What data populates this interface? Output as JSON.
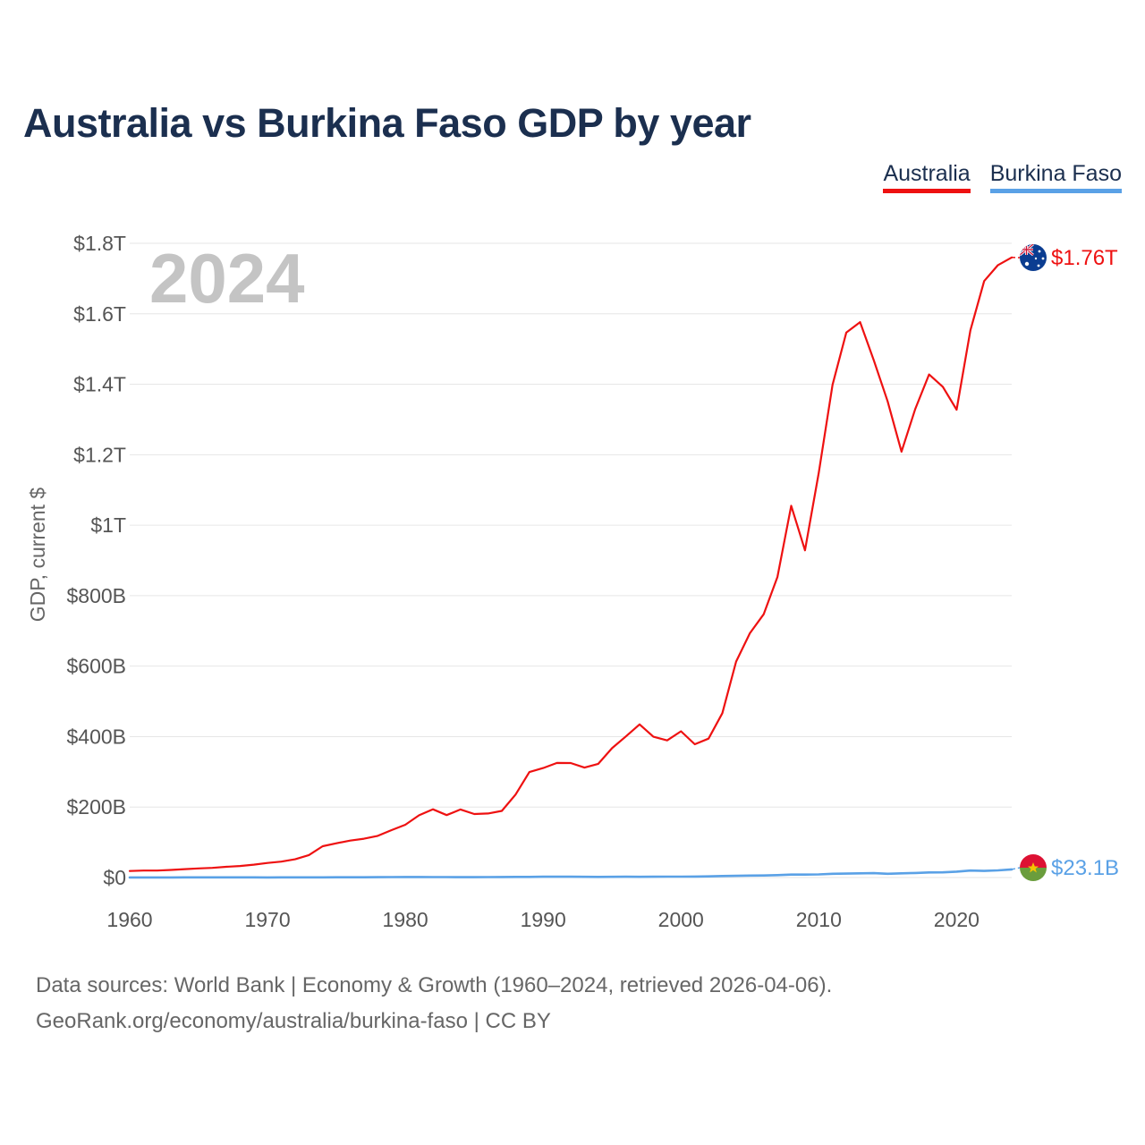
{
  "title": "Australia vs Burkina Faso GDP by year",
  "legend": {
    "items": [
      {
        "label": "Australia",
        "color": "#ee1111"
      },
      {
        "label": "Burkina Faso",
        "color": "#5aa1e6"
      }
    ]
  },
  "watermark_year": "2024",
  "footer": {
    "line1": "Data sources: World Bank | Economy & Growth (1960–2024, retrieved 2026-04-06).",
    "line2": "GeoRank.org/economy/australia/burkina-faso | CC BY"
  },
  "chart_data": {
    "type": "line",
    "title": "Australia vs Burkina Faso GDP by year",
    "xlabel": "",
    "ylabel": "GDP, current $",
    "xlim": [
      1960,
      2024
    ],
    "ylim": [
      0,
      1800000000000
    ],
    "grid": true,
    "legend_position": "top-right",
    "x_ticks": [
      {
        "value": 1960,
        "label": "1960"
      },
      {
        "value": 1970,
        "label": "1970"
      },
      {
        "value": 1980,
        "label": "1980"
      },
      {
        "value": 1990,
        "label": "1990"
      },
      {
        "value": 2000,
        "label": "2000"
      },
      {
        "value": 2010,
        "label": "2010"
      },
      {
        "value": 2020,
        "label": "2020"
      }
    ],
    "y_ticks": [
      {
        "value": 0,
        "label": "$0"
      },
      {
        "value": 200000000000,
        "label": "$200B"
      },
      {
        "value": 400000000000,
        "label": "$400B"
      },
      {
        "value": 600000000000,
        "label": "$600B"
      },
      {
        "value": 800000000000,
        "label": "$800B"
      },
      {
        "value": 1000000000000,
        "label": "$1T"
      },
      {
        "value": 1200000000000,
        "label": "$1.2T"
      },
      {
        "value": 1400000000000,
        "label": "$1.4T"
      },
      {
        "value": 1600000000000,
        "label": "$1.6T"
      },
      {
        "value": 1800000000000,
        "label": "$1.8T"
      }
    ],
    "series": [
      {
        "name": "Australia",
        "color": "#ee1111",
        "end_label": "$1.76T",
        "flag": "australia-flag-icon",
        "x": [
          1960,
          1961,
          1962,
          1963,
          1964,
          1965,
          1966,
          1967,
          1968,
          1969,
          1970,
          1971,
          1972,
          1973,
          1974,
          1975,
          1976,
          1977,
          1978,
          1979,
          1980,
          1981,
          1982,
          1983,
          1984,
          1985,
          1986,
          1987,
          1988,
          1989,
          1990,
          1991,
          1992,
          1993,
          1994,
          1995,
          1996,
          1997,
          1998,
          1999,
          2000,
          2001,
          2002,
          2003,
          2004,
          2005,
          2006,
          2007,
          2008,
          2009,
          2010,
          2011,
          2012,
          2013,
          2014,
          2015,
          2016,
          2017,
          2018,
          2019,
          2020,
          2021,
          2022,
          2023,
          2024
        ],
        "values_billions": [
          18.6,
          19.7,
          19.9,
          21.5,
          23.8,
          25.9,
          27.3,
          30.4,
          32.7,
          36.6,
          41.3,
          45.2,
          51.9,
          63.8,
          88.8,
          97.2,
          104.9,
          110.2,
          118.3,
          134.6,
          149.8,
          176.6,
          193.8,
          177.3,
          193.2,
          180.2,
          181.9,
          189.1,
          235.7,
          299.3,
          310.8,
          325.3,
          324.9,
          312.0,
          322.8,
          367.2,
          400.3,
          434.6,
          399.6,
          389.2,
          415.0,
          378.4,
          394.3,
          466.5,
          612.9,
          693.3,
          747.2,
          853.1,
          1055.0,
          928.8,
          1148.8,
          1398.3,
          1547.0,
          1576.4,
          1467.5,
          1351.3,
          1208.8,
          1330.0,
          1427.8,
          1392.7,
          1327.8,
          1553.1,
          1692.9,
          1738.0,
          1760.0
        ]
      },
      {
        "name": "Burkina Faso",
        "color": "#5aa1e6",
        "end_label": "$23.1B",
        "flag": "burkina-faso-flag-icon",
        "x": [
          1960,
          1961,
          1962,
          1963,
          1964,
          1965,
          1966,
          1967,
          1968,
          1969,
          1970,
          1971,
          1972,
          1973,
          1974,
          1975,
          1976,
          1977,
          1978,
          1979,
          1980,
          1981,
          1982,
          1983,
          1984,
          1985,
          1986,
          1987,
          1988,
          1989,
          1990,
          1991,
          1992,
          1993,
          1994,
          1995,
          1996,
          1997,
          1998,
          1999,
          2000,
          2001,
          2002,
          2003,
          2004,
          2005,
          2006,
          2007,
          2008,
          2009,
          2010,
          2011,
          2012,
          2013,
          2014,
          2015,
          2016,
          2017,
          2018,
          2019,
          2020,
          2021,
          2022,
          2023,
          2024
        ],
        "values_billions": [
          0.33,
          0.35,
          0.37,
          0.38,
          0.39,
          0.4,
          0.41,
          0.42,
          0.43,
          0.44,
          0.36,
          0.39,
          0.46,
          0.54,
          0.57,
          0.74,
          0.75,
          0.88,
          1.08,
          1.3,
          1.46,
          1.41,
          1.37,
          1.25,
          1.06,
          1.05,
          1.39,
          1.6,
          1.75,
          1.75,
          2.16,
          2.28,
          2.22,
          1.98,
          1.76,
          2.1,
          2.3,
          2.12,
          2.35,
          2.54,
          2.6,
          2.81,
          3.2,
          4.19,
          4.84,
          5.46,
          5.85,
          6.77,
          8.37,
          8.37,
          8.98,
          10.72,
          11.17,
          11.95,
          12.33,
          10.68,
          11.83,
          13.06,
          14.5,
          14.7,
          16.7,
          19.7,
          18.9,
          20.3,
          23.1
        ]
      }
    ]
  }
}
